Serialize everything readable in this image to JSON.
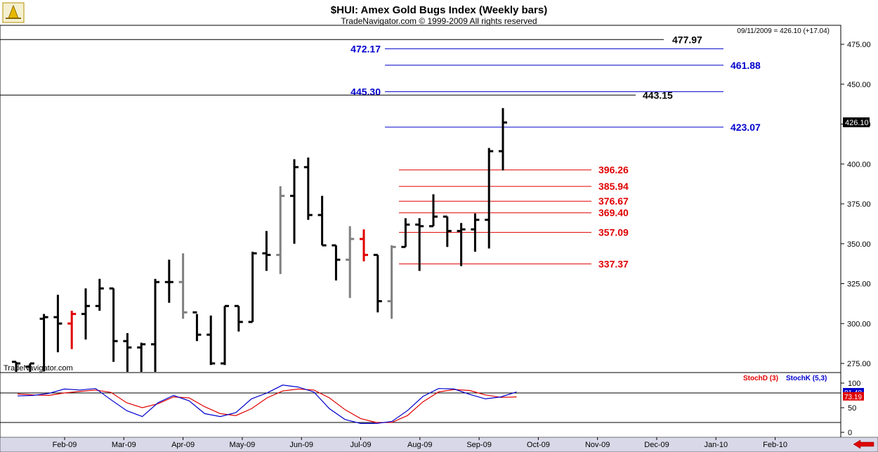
{
  "header": {
    "title": "$HUI:  Amex Gold Bugs Index  (Weekly bars)",
    "copyright": "TradeNavigator.com © 1999-2009 All rights reserved",
    "status": "09/11/2009 = 426.10 (+17.04)",
    "watermark": "TradeNavigator.com"
  },
  "colors": {
    "up_bar": "#000000",
    "down_bar": "#808080",
    "highlight_bar": "#e00000",
    "blue_level": "#0000cc",
    "red_level": "#e00000",
    "black_level": "#000000",
    "stochD": "#e00000",
    "stochK": "#0000cc",
    "logo": "#e8b800"
  },
  "chart_data": [
    {
      "type": "ohlc",
      "ylim": [
        265,
        485
      ],
      "y_ticks": [
        275,
        300,
        325,
        350,
        375,
        400,
        425,
        450,
        475
      ],
      "x_ticks": [
        "Feb-09",
        "Mar-09",
        "Apr-09",
        "May-09",
        "Jun-09",
        "Jul-09",
        "Aug-09",
        "Sep-09",
        "Oct-09",
        "Nov-09",
        "Dec-09",
        "Jan-10",
        "Feb-10"
      ],
      "current_price_label": "426.10",
      "bars": [
        {
          "o": 276,
          "h": 276,
          "l": 265,
          "c": 275,
          "t": "up"
        },
        {
          "o": 273,
          "h": 275,
          "l": 265,
          "c": 275,
          "t": "up"
        },
        {
          "o": 303,
          "h": 306,
          "l": 270,
          "c": 304,
          "t": "up"
        },
        {
          "o": 304,
          "h": 318,
          "l": 282,
          "c": 300,
          "t": "up"
        },
        {
          "o": 300,
          "h": 308,
          "l": 284,
          "c": 306,
          "t": "red"
        },
        {
          "o": 306,
          "h": 322,
          "l": 290,
          "c": 311,
          "t": "up"
        },
        {
          "o": 311,
          "h": 328,
          "l": 308,
          "c": 322,
          "t": "up"
        },
        {
          "o": 322,
          "h": 322,
          "l": 276,
          "c": 289,
          "t": "up"
        },
        {
          "o": 289,
          "h": 294,
          "l": 268,
          "c": 285,
          "t": "up"
        },
        {
          "o": 285,
          "h": 288,
          "l": 268,
          "c": 287,
          "t": "up"
        },
        {
          "o": 287,
          "h": 328,
          "l": 268,
          "c": 326,
          "t": "up"
        },
        {
          "o": 326,
          "h": 340,
          "l": 313,
          "c": 326,
          "t": "up"
        },
        {
          "o": 326,
          "h": 344,
          "l": 303,
          "c": 307,
          "t": "down"
        },
        {
          "o": 307,
          "h": 306,
          "l": 289,
          "c": 293,
          "t": "up"
        },
        {
          "o": 293,
          "h": 305,
          "l": 274,
          "c": 275,
          "t": "up"
        },
        {
          "o": 275,
          "h": 311,
          "l": 274,
          "c": 311,
          "t": "up"
        },
        {
          "o": 311,
          "h": 311,
          "l": 295,
          "c": 301,
          "t": "up"
        },
        {
          "o": 301,
          "h": 345,
          "l": 301,
          "c": 344,
          "t": "up"
        },
        {
          "o": 344,
          "h": 358,
          "l": 333,
          "c": 343,
          "t": "up"
        },
        {
          "o": 343,
          "h": 386,
          "l": 331,
          "c": 380,
          "t": "down"
        },
        {
          "o": 380,
          "h": 403,
          "l": 350,
          "c": 398,
          "t": "up"
        },
        {
          "o": 398,
          "h": 404,
          "l": 365,
          "c": 368,
          "t": "up"
        },
        {
          "o": 368,
          "h": 380,
          "l": 349,
          "c": 349,
          "t": "up"
        },
        {
          "o": 349,
          "h": 349,
          "l": 327,
          "c": 340,
          "t": "up"
        },
        {
          "o": 340,
          "h": 361,
          "l": 316,
          "c": 353,
          "t": "down"
        },
        {
          "o": 353,
          "h": 359,
          "l": 339,
          "c": 343,
          "t": "red"
        },
        {
          "o": 343,
          "h": 343,
          "l": 307,
          "c": 314,
          "t": "up"
        },
        {
          "o": 314,
          "h": 349,
          "l": 303,
          "c": 348,
          "t": "down"
        },
        {
          "o": 348,
          "h": 366,
          "l": 348,
          "c": 362,
          "t": "up"
        },
        {
          "o": 362,
          "h": 366,
          "l": 333,
          "c": 361,
          "t": "up"
        },
        {
          "o": 361,
          "h": 381,
          "l": 361,
          "c": 367,
          "t": "up"
        },
        {
          "o": 367,
          "h": 367,
          "l": 348,
          "c": 358,
          "t": "up"
        },
        {
          "o": 358,
          "h": 363,
          "l": 336,
          "c": 359,
          "t": "up"
        },
        {
          "o": 359,
          "h": 369,
          "l": 345,
          "c": 365,
          "t": "up"
        },
        {
          "o": 365,
          "h": 410,
          "l": 347,
          "c": 408,
          "t": "up"
        },
        {
          "o": 408,
          "h": 435,
          "l": 396,
          "c": 426,
          "t": "up"
        }
      ],
      "levels": [
        {
          "value": 477.97,
          "label": "477.97",
          "color": "black"
        },
        {
          "value": 472.17,
          "label": "472.17",
          "color": "blue"
        },
        {
          "value": 461.88,
          "label": "461.88",
          "color": "blue"
        },
        {
          "value": 445.3,
          "label": "445.30",
          "color": "blue"
        },
        {
          "value": 443.15,
          "label": "443.15",
          "color": "black"
        },
        {
          "value": 423.07,
          "label": "423.07",
          "color": "blue"
        },
        {
          "value": 396.26,
          "label": "396.26",
          "color": "red"
        },
        {
          "value": 385.94,
          "label": "385.94",
          "color": "red"
        },
        {
          "value": 376.67,
          "label": "376.67",
          "color": "red"
        },
        {
          "value": 369.4,
          "label": "369.40",
          "color": "red"
        },
        {
          "value": 357.09,
          "label": "357.09",
          "color": "red"
        },
        {
          "value": 337.37,
          "label": "337.37",
          "color": "red"
        }
      ]
    },
    {
      "type": "line",
      "ylim": [
        0,
        100
      ],
      "y_ticks": [
        0,
        50,
        100
      ],
      "reference_lines": [
        20,
        80
      ],
      "legend": [
        "StochD (3)",
        "StochK (5,3)"
      ],
      "last_values": [
        "81.48",
        "73.19"
      ],
      "series": [
        {
          "name": "StochD (3)",
          "values": [
            78,
            76,
            75,
            80,
            83,
            86,
            81,
            60,
            50,
            58,
            72,
            70,
            52,
            38,
            34,
            48,
            70,
            84,
            88,
            86,
            70,
            46,
            28,
            20,
            20,
            34,
            62,
            82,
            87,
            85,
            76,
            71,
            72
          ]
        },
        {
          "name": "StochK (5,3)",
          "values": [
            74,
            75,
            79,
            88,
            86,
            89,
            66,
            44,
            32,
            60,
            75,
            64,
            38,
            32,
            40,
            68,
            80,
            96,
            92,
            82,
            48,
            26,
            18,
            18,
            22,
            44,
            73,
            89,
            88,
            77,
            68,
            72,
            82
          ]
        }
      ]
    }
  ]
}
